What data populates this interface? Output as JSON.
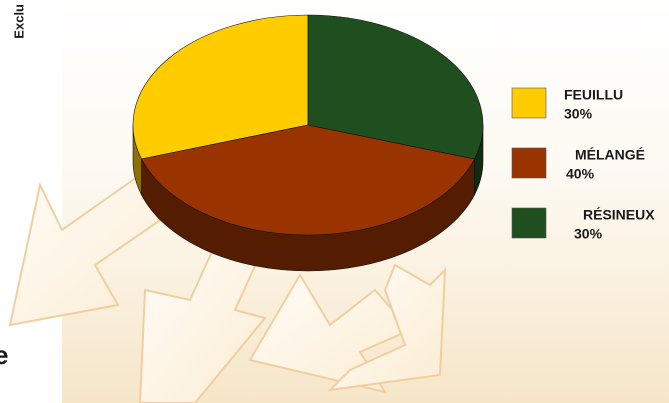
{
  "chart_data": {
    "type": "pie3d",
    "categories": [
      "FEUILLU",
      "MÉLANGÉ",
      "RÉSINEUX"
    ],
    "values": [
      30,
      40,
      30
    ],
    "value_labels": [
      "30%",
      "40%",
      "30%"
    ],
    "colors": [
      "#ffcc00",
      "#993300",
      "#1f4f1f"
    ],
    "annotations": [
      "Exclu",
      "e"
    ]
  }
}
